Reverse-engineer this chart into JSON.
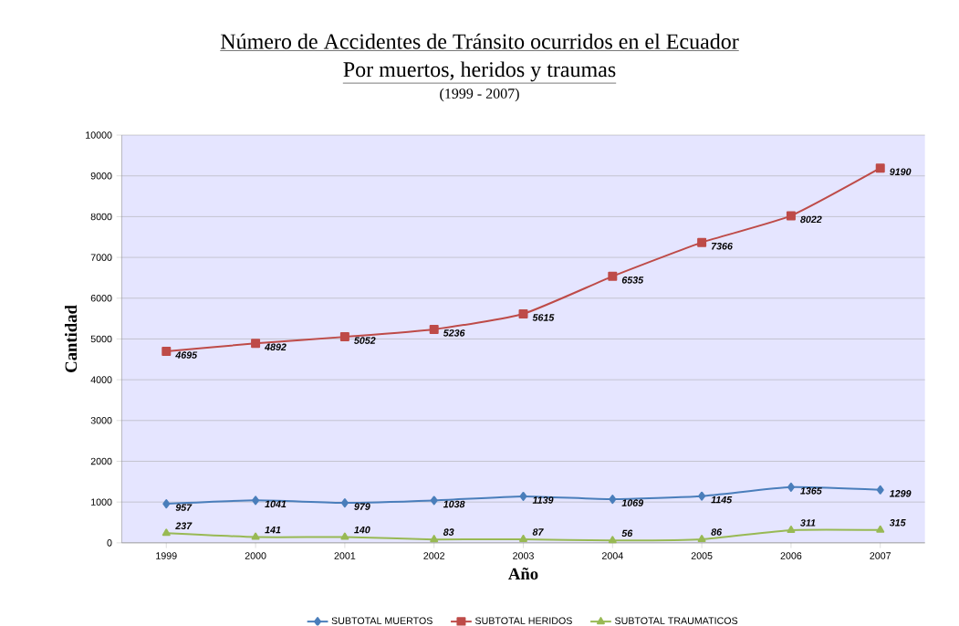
{
  "chart_data": {
    "type": "line",
    "title": "Número de Accidentes de Tránsito ocurridos en el Ecuador",
    "subtitle": "Por muertos, heridos y traumas",
    "annotations": [
      "(1999 - 2007)"
    ],
    "xlabel": "Año",
    "ylabel": "Cantidad",
    "categories": [
      "1999",
      "2000",
      "2001",
      "2002",
      "2003",
      "2004",
      "2005",
      "2006",
      "2007"
    ],
    "series": [
      {
        "name": "SUBTOTAL MUERTOS",
        "color": "#4a7ebb",
        "marker": "diamond",
        "values": [
          957,
          1041,
          979,
          1038,
          1139,
          1069,
          1145,
          1365,
          1299
        ]
      },
      {
        "name": "SUBTOTAL HERIDOS",
        "color": "#be4b48",
        "marker": "square",
        "values": [
          4695,
          4892,
          5052,
          5236,
          5615,
          6535,
          7366,
          8022,
          9190
        ]
      },
      {
        "name": "SUBTOTAL TRAUMATICOS",
        "color": "#98b954",
        "marker": "triangle",
        "values": [
          237,
          141,
          140,
          83,
          87,
          56,
          86,
          311,
          315
        ]
      }
    ],
    "ylim": [
      0,
      10000
    ],
    "yticks": [
      0,
      1000,
      2000,
      3000,
      4000,
      5000,
      6000,
      7000,
      8000,
      9000,
      10000
    ],
    "grid": "y",
    "legend": "bottom",
    "data_labels": true,
    "line_style": "solid"
  }
}
